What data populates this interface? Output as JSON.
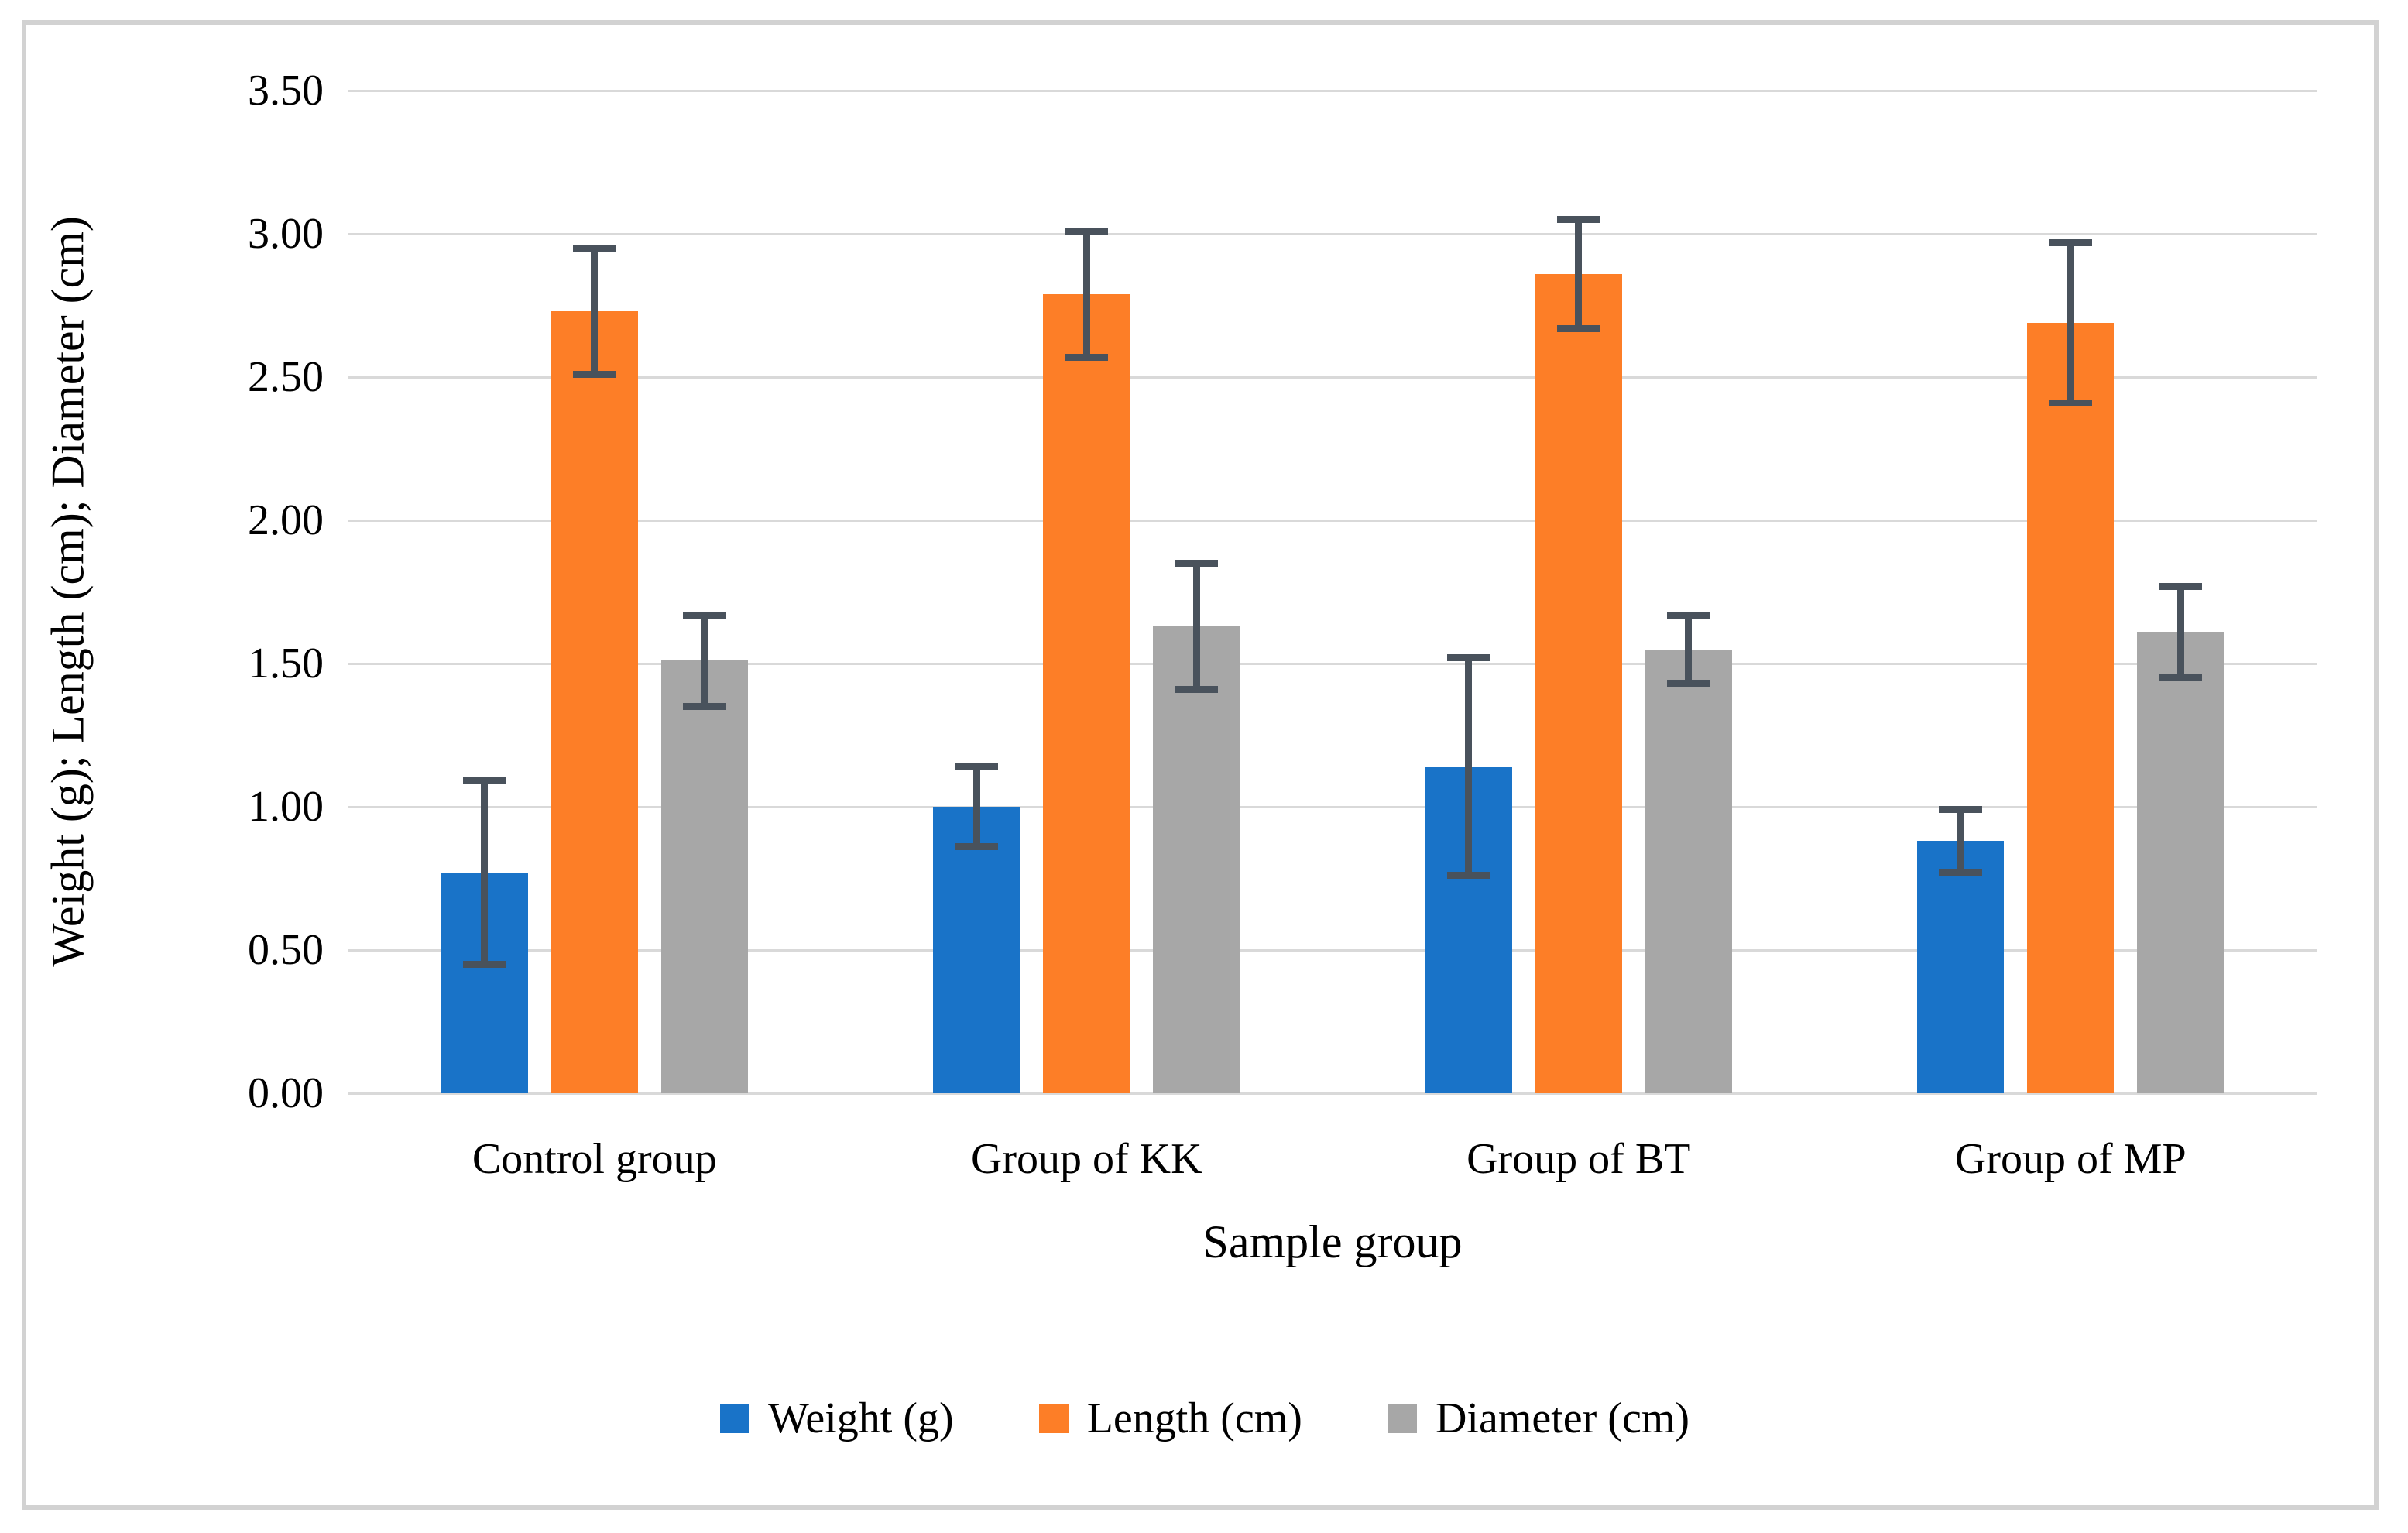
{
  "chart_data": {
    "type": "bar",
    "title": "",
    "xlabel": "Sample group",
    "ylabel": "Weight (g); Length (cm); Diameter (cm)",
    "categories": [
      "Control group",
      "Group of KK",
      "Group of BT",
      "Group of MP"
    ],
    "series": [
      {
        "name": "Weight (g)",
        "color": "#1973c8",
        "values": [
          0.77,
          1.0,
          1.14,
          0.88
        ],
        "errors": [
          0.32,
          0.14,
          0.38,
          0.11
        ]
      },
      {
        "name": "Length (cm)",
        "color": "#fd7e27",
        "values": [
          2.73,
          2.79,
          2.86,
          2.69
        ],
        "errors": [
          0.22,
          0.22,
          0.19,
          0.28
        ]
      },
      {
        "name": "Diameter (cm)",
        "color": "#a7a7a7",
        "values": [
          1.51,
          1.63,
          1.55,
          1.61
        ],
        "errors": [
          0.16,
          0.22,
          0.12,
          0.16
        ]
      }
    ],
    "yticks": [
      "0.00",
      "0.50",
      "1.00",
      "1.50",
      "2.00",
      "2.50",
      "3.00",
      "3.50"
    ],
    "ylim": [
      0,
      3.5
    ],
    "grid": true,
    "legend_position": "bottom",
    "error_bar_color": "#49525c",
    "gridline_color": "#d9d9d9",
    "frame_border_color": "#d2d2d2"
  }
}
